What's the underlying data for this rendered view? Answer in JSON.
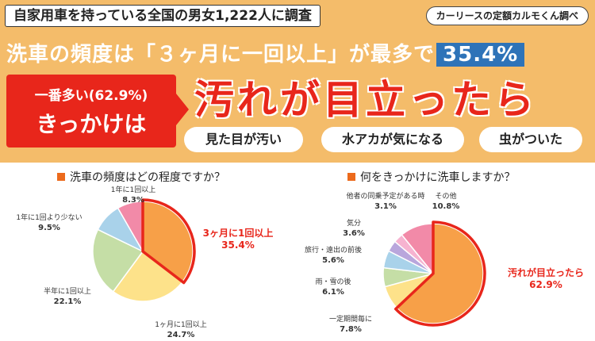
{
  "header": {
    "survey_title": "自家用車を持っている全国の男女1,222人に調査",
    "source_badge": "カーリースの定額カルモくん調べ",
    "headline_main": "洗車の頻度は「３ヶ月に一回以上」が最多で",
    "headline_pct": "35.4%",
    "red_box_line1": "一番多い(62.9%)",
    "red_box_line2": "きっかけは",
    "big_phrase": "汚れが目立ったら",
    "pills": [
      "見た目が汚い",
      "水アカが気になる",
      "虫がついた"
    ]
  },
  "colors": {
    "top_bg": "#f4bc6a",
    "accent_red": "#e8261b",
    "accent_blue": "#2e73b8"
  },
  "chart_data": [
    {
      "type": "pie",
      "title": "洗車の頻度はどの程度ですか？",
      "slices": [
        {
          "label": "3ヶ月に1回以上",
          "value": 35.4,
          "value_label": "35.4%",
          "color": "#f7a048",
          "highlight": true
        },
        {
          "label": "1ヶ月に1回以上",
          "value": 24.7,
          "value_label": "24.7%",
          "color": "#fde28a"
        },
        {
          "label": "半年に1回以上",
          "value": 22.1,
          "value_label": "22.1%",
          "color": "#c5dea6"
        },
        {
          "label": "1年に1回より少ない",
          "value": 9.5,
          "value_label": "9.5%",
          "color": "#a9d2ea"
        },
        {
          "label": "1年に1回以上",
          "value": 8.3,
          "value_label": "8.3%",
          "color": "#f28aa8"
        }
      ]
    },
    {
      "type": "pie",
      "title": "何をきっかけに洗車しますか？",
      "slices": [
        {
          "label": "汚れが目立ったら",
          "value": 62.9,
          "value_label": "62.9%",
          "color": "#f7a048",
          "highlight": true
        },
        {
          "label": "一定期間毎に",
          "value": 7.8,
          "value_label": "7.8%",
          "color": "#fde28a"
        },
        {
          "label": "雨・雪の後",
          "value": 6.1,
          "value_label": "6.1%",
          "color": "#c5dea6"
        },
        {
          "label": "旅行・遠出の前後",
          "value": 5.6,
          "value_label": "5.6%",
          "color": "#a9d2ea"
        },
        {
          "label": "気分",
          "value": 3.6,
          "value_label": "3.6%",
          "color": "#b9a6dc"
        },
        {
          "label": "他者の同乗予定がある時",
          "value": 3.1,
          "value_label": "3.1%",
          "color": "#f6b3d0"
        },
        {
          "label": "その他",
          "value": 10.8,
          "value_label": "10.8%",
          "color": "#f28aa8"
        }
      ]
    }
  ]
}
